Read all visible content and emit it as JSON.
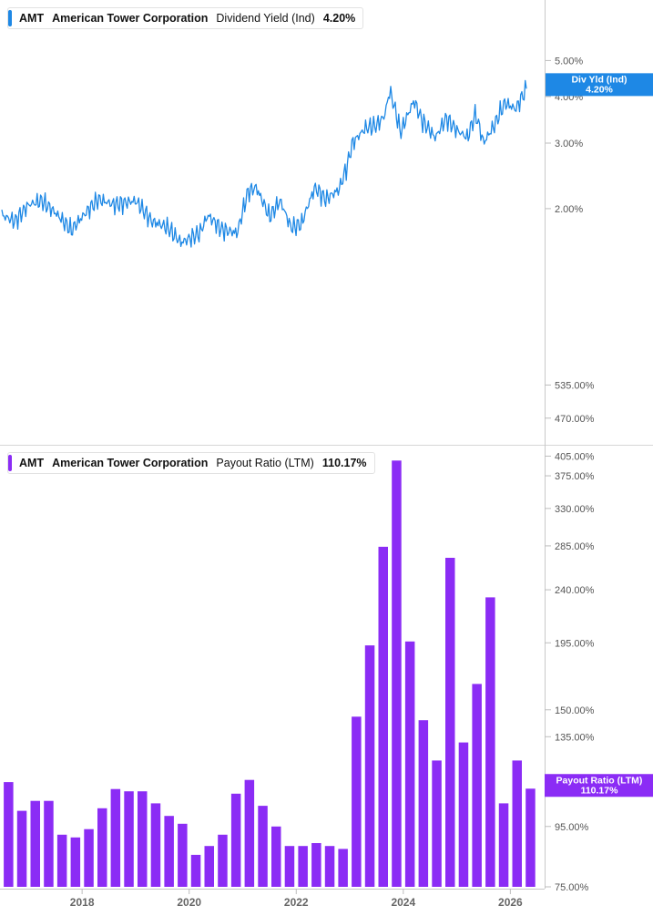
{
  "top_legend": {
    "ticker": "AMT",
    "company": "American Tower Corporation",
    "metric": "Dividend Yield (Ind)",
    "value": "4.20%",
    "color": "#1e88e5"
  },
  "bottom_legend": {
    "ticker": "AMT",
    "company": "American Tower Corporation",
    "metric": "Payout Ratio (LTM)",
    "value": "110.17%",
    "color": "#8b2cf5"
  },
  "chart_data": [
    {
      "type": "line",
      "title": "",
      "series": [
        {
          "name": "Dividend Yield (Ind)",
          "color": "#1e88e5"
        }
      ],
      "scale": "log",
      "ylim": [
        1.5,
        5.4
      ],
      "y_ticks": [
        "2.00%",
        "3.00%",
        "4.00%",
        "5.00%"
      ],
      "y_tick_values": [
        2.0,
        3.0,
        4.0,
        5.0
      ],
      "last_value_tag": {
        "label": "Div Yld (Ind)",
        "value": "4.20%",
        "y": 4.2
      },
      "x": [
        2016.5,
        2016.75,
        2017.0,
        2017.25,
        2017.5,
        2017.8,
        2018.0,
        2018.3,
        2018.6,
        2019.0,
        2019.3,
        2019.6,
        2019.85,
        2020.2,
        2020.35,
        2020.6,
        2020.9,
        2021.1,
        2021.25,
        2021.5,
        2021.7,
        2021.9,
        2022.1,
        2022.35,
        2022.55,
        2022.8,
        2022.95,
        2023.05,
        2023.3,
        2023.5,
        2023.65,
        2023.75,
        2023.95,
        2024.2,
        2024.35,
        2024.6,
        2024.8,
        2025.0,
        2025.2,
        2025.35,
        2025.5,
        2025.7,
        2025.9,
        2026.1,
        2026.3
      ],
      "values": [
        1.92,
        1.85,
        2.05,
        2.1,
        1.95,
        1.75,
        1.9,
        2.12,
        2.05,
        2.1,
        1.85,
        1.78,
        1.62,
        1.72,
        1.92,
        1.76,
        1.72,
        2.22,
        2.28,
        1.9,
        2.1,
        1.78,
        1.82,
        2.28,
        2.12,
        2.25,
        2.6,
        3.0,
        3.3,
        3.35,
        3.55,
        4.15,
        3.2,
        3.9,
        3.45,
        3.1,
        3.5,
        3.25,
        3.1,
        3.6,
        3.0,
        3.35,
        3.85,
        3.7,
        4.2
      ]
    },
    {
      "type": "bar",
      "title": "",
      "series": [
        {
          "name": "Payout Ratio (LTM)",
          "color": "#8b2cf5"
        }
      ],
      "scale": "log",
      "ylim": [
        75,
        600
      ],
      "y_ticks": [
        "75.00%",
        "95.00%",
        "135.00%",
        "150.00%",
        "195.00%",
        "240.00%",
        "285.00%",
        "330.00%",
        "375.00%",
        "405.00%",
        "470.00%",
        "535.00%"
      ],
      "y_tick_values": [
        75,
        95,
        135,
        150,
        195,
        240,
        285,
        330,
        375,
        405,
        470,
        535
      ],
      "x_ticks": [
        "2018",
        "2020",
        "2022",
        "2024",
        "2026"
      ],
      "x_tick_values": [
        2018,
        2020,
        2022,
        2024,
        2026
      ],
      "last_value_tag": {
        "label": "Payout Ratio (LTM)",
        "value": "110.17%",
        "y": 110.17
      },
      "x": [
        2016.625,
        2016.875,
        2017.125,
        2017.375,
        2017.625,
        2017.875,
        2018.125,
        2018.375,
        2018.625,
        2018.875,
        2019.125,
        2019.375,
        2019.625,
        2019.875,
        2020.125,
        2020.375,
        2020.625,
        2020.875,
        2021.125,
        2021.375,
        2021.625,
        2021.875,
        2022.125,
        2022.375,
        2022.625,
        2022.875,
        2023.125,
        2023.375,
        2023.625,
        2023.875,
        2024.125,
        2024.375,
        2024.625,
        2024.875,
        2025.125,
        2025.375,
        2025.625,
        2025.875,
        2026.125,
        2026.375
      ],
      "values": [
        113,
        101,
        105,
        105,
        92,
        91,
        94,
        102,
        110,
        109,
        109,
        104,
        99,
        96,
        85,
        88,
        92,
        108,
        114,
        103,
        95,
        88,
        88,
        89,
        88,
        87,
        146,
        193,
        284,
        398,
        196,
        144,
        123,
        272,
        132,
        166,
        233,
        104,
        123,
        110.17
      ]
    }
  ]
}
